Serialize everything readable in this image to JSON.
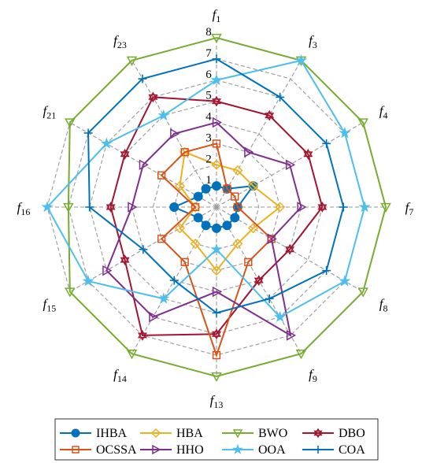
{
  "chart_data": {
    "type": "radar",
    "title": "",
    "axes": [
      {
        "name": "f",
        "sub": "1"
      },
      {
        "name": "f",
        "sub": "3"
      },
      {
        "name": "f",
        "sub": "4"
      },
      {
        "name": "f",
        "sub": "7"
      },
      {
        "name": "f",
        "sub": "8"
      },
      {
        "name": "f",
        "sub": "9"
      },
      {
        "name": "f",
        "sub": "13"
      },
      {
        "name": "f",
        "sub": "14"
      },
      {
        "name": "f",
        "sub": "15"
      },
      {
        "name": "f",
        "sub": "16"
      },
      {
        "name": "f",
        "sub": "21"
      },
      {
        "name": "f",
        "sub": "23"
      }
    ],
    "rlim": [
      0,
      8
    ],
    "ticks": [
      "1",
      "2",
      "3",
      "4",
      "5",
      "6",
      "7",
      "8"
    ],
    "grid": true,
    "legend_position": "bottom",
    "series": [
      {
        "name": "IHBA",
        "color": "#0072bd",
        "marker": "circle",
        "values": [
          1,
          1,
          2,
          1,
          1,
          1,
          1,
          1,
          1,
          2,
          1,
          1
        ]
      },
      {
        "name": "HBA",
        "color": "#edb120",
        "marker": "diamond",
        "values": [
          2,
          2,
          2,
          3,
          2,
          2,
          3,
          2,
          2,
          1,
          2,
          3
        ]
      },
      {
        "name": "BWO",
        "color": "#77ac30",
        "marker": "triangle-down",
        "values": [
          8,
          8,
          8,
          8,
          8,
          8,
          8,
          8,
          8,
          7,
          8,
          8
        ]
      },
      {
        "name": "DBO",
        "color": "#a2142f",
        "marker": "hexagram",
        "values": [
          5,
          5,
          5,
          5,
          4,
          4,
          6,
          7,
          5,
          5,
          5,
          6
        ]
      },
      {
        "name": "OCSSA",
        "color": "#d95319",
        "marker": "square",
        "values": [
          3,
          1,
          1,
          1,
          3,
          3,
          7,
          3,
          3,
          1,
          3,
          3
        ]
      },
      {
        "name": "HHO",
        "color": "#7e2f8e",
        "marker": "triangle-right",
        "values": [
          4,
          3,
          4,
          4,
          3,
          7,
          4,
          6,
          6,
          4,
          4,
          4
        ]
      },
      {
        "name": "OOA",
        "color": "#4dbeee",
        "marker": "star",
        "values": [
          6,
          8,
          7,
          7,
          7,
          6,
          2,
          5,
          7,
          8,
          6,
          5
        ]
      },
      {
        "name": "COA",
        "color": "#0072bd",
        "marker": "plus",
        "values": [
          7,
          6,
          6,
          6,
          6,
          5,
          5,
          4,
          4,
          6,
          7,
          7
        ]
      }
    ]
  }
}
